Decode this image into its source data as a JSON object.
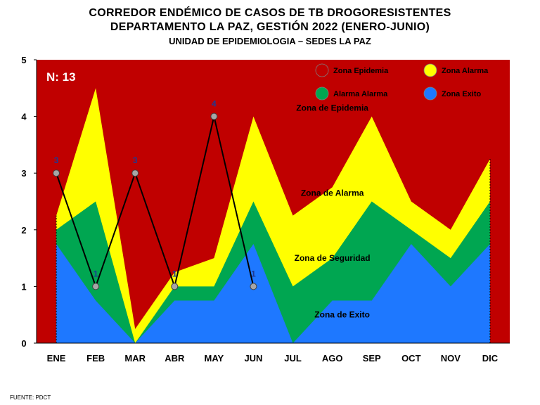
{
  "title_line1": "CORREDOR ENDÉMICO DE CASOS DE TB DROGORESISTENTES",
  "title_line2": "DEPARTAMENTO  LA PAZ, GESTIÓN 2022 (ENERO-JUNIO)",
  "title_line3": "UNIDAD DE EPIDEMIOLOGIA – SEDES LA PAZ",
  "footer": "FUENTE:  PDCT",
  "n_label": "N: 13",
  "colors": {
    "epidemia": "#c00000",
    "alarma": "#ffff00",
    "seguridad": "#00a651",
    "exito": "#1e78ff",
    "line": "#000000",
    "marker": "#a6a6a6",
    "data_label": "#1f3a93"
  },
  "chart_data": {
    "type": "area",
    "categories": [
      "ENE",
      "FEB",
      "MAR",
      "ABR",
      "MAY",
      "JUN",
      "JUL",
      "AGO",
      "SEP",
      "OCT",
      "NOV",
      "DIC"
    ],
    "ylim": [
      0,
      5
    ],
    "yticks": [
      "0",
      "1",
      "2",
      "3",
      "4",
      "5"
    ],
    "grid": false,
    "legend": [
      {
        "name": "Zona Epidemia",
        "color": "#c00000"
      },
      {
        "name": "Zona  Alarma",
        "color": "#ffff00"
      },
      {
        "name": "Alarma  Alarma",
        "color": "#00a651"
      },
      {
        "name": "Zona Exito",
        "color": "#1e78ff"
      }
    ],
    "zones": {
      "exito": [
        1.75,
        0.75,
        0.0,
        0.75,
        0.75,
        1.75,
        0.0,
        0.75,
        0.75,
        1.75,
        1.0,
        1.75
      ],
      "seguridad": [
        2.0,
        2.5,
        0.0,
        1.0,
        1.0,
        2.5,
        1.0,
        1.5,
        2.5,
        2.0,
        1.5,
        2.5
      ],
      "alarma": [
        2.25,
        4.5,
        0.25,
        1.25,
        1.5,
        4.0,
        2.25,
        2.75,
        4.0,
        2.5,
        2.0,
        3.25
      ],
      "epidemia": [
        5,
        5,
        5,
        5,
        5,
        5,
        5,
        5,
        5,
        5,
        5,
        5
      ]
    },
    "zone_labels": [
      {
        "text": "Zona de Epidemia",
        "x": 7.5,
        "y": 4.1
      },
      {
        "text": "Zona de Alarma",
        "x": 7.5,
        "y": 2.6
      },
      {
        "text": "Zona de Seguridad",
        "x": 7.5,
        "y": 1.45
      },
      {
        "text": "Zona de Exito",
        "x": 7.75,
        "y": 0.45
      }
    ],
    "cases": {
      "x": [
        "ENE",
        "FEB",
        "MAR",
        "ABR",
        "MAY",
        "JUN"
      ],
      "values": [
        3,
        1,
        3,
        1,
        4,
        1
      ],
      "labels": [
        "3",
        "1",
        "3",
        "1",
        "4",
        "1"
      ]
    }
  }
}
